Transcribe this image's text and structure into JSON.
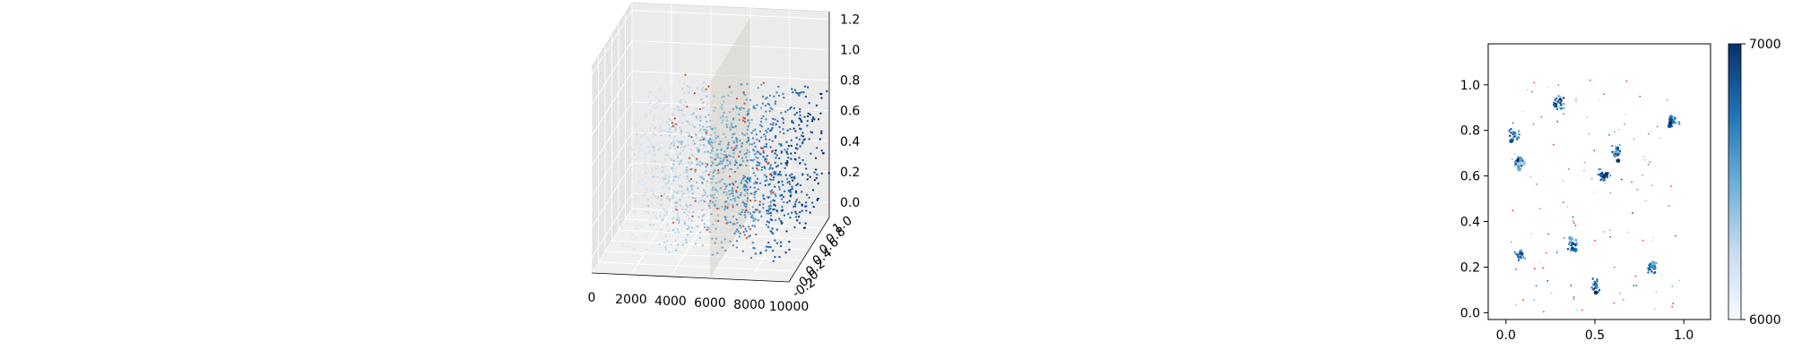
{
  "chart_data": [
    {
      "type": "scatter",
      "projection": "3d",
      "title": "",
      "xlabel": "",
      "ylabel": "",
      "zlabel": "",
      "x_ticks": [
        "0",
        "2000",
        "4000",
        "6000",
        "8000",
        "10000"
      ],
      "y_ticks": [
        "-0.2",
        "0.0",
        "0.2",
        "0.4",
        "0.6",
        "0.8",
        "1.0"
      ],
      "z_ticks": [
        "0.0",
        "0.2",
        "0.4",
        "0.6",
        "0.8",
        "1.0",
        "1.2"
      ],
      "xlim": [
        0,
        10000
      ],
      "ylim": [
        -0.2,
        1.0
      ],
      "zlim": [
        -0.1,
        1.25
      ],
      "bands_z": [
        0.05,
        0.2,
        0.35,
        0.5,
        0.62,
        0.75
      ],
      "colormap": "Blues",
      "outlier_color": "#d9442b",
      "plane_color": "#c8c2b4"
    },
    {
      "type": "scatter",
      "title": "",
      "xlabel": "",
      "ylabel": "",
      "x_ticks": [
        "0.0",
        "0.5",
        "1.0"
      ],
      "y_ticks": [
        "0.0",
        "0.2",
        "0.4",
        "0.6",
        "0.8",
        "1.0"
      ],
      "xlim": [
        -0.1,
        1.15
      ],
      "ylim": [
        -0.03,
        1.18
      ],
      "colorbar": {
        "min": 6000,
        "max": 7000,
        "labels": [
          "7000",
          "6000"
        ],
        "colormap": "Blues"
      },
      "clusters": [
        {
          "x": 0.05,
          "y": 0.78
        },
        {
          "x": 0.07,
          "y": 0.66
        },
        {
          "x": 0.3,
          "y": 0.92
        },
        {
          "x": 0.62,
          "y": 0.7
        },
        {
          "x": 0.55,
          "y": 0.6
        },
        {
          "x": 0.94,
          "y": 0.84
        },
        {
          "x": 0.82,
          "y": 0.2
        },
        {
          "x": 0.5,
          "y": 0.12
        },
        {
          "x": 0.08,
          "y": 0.25
        },
        {
          "x": 0.38,
          "y": 0.3
        }
      ],
      "outlier_color": "#d9442b"
    }
  ]
}
